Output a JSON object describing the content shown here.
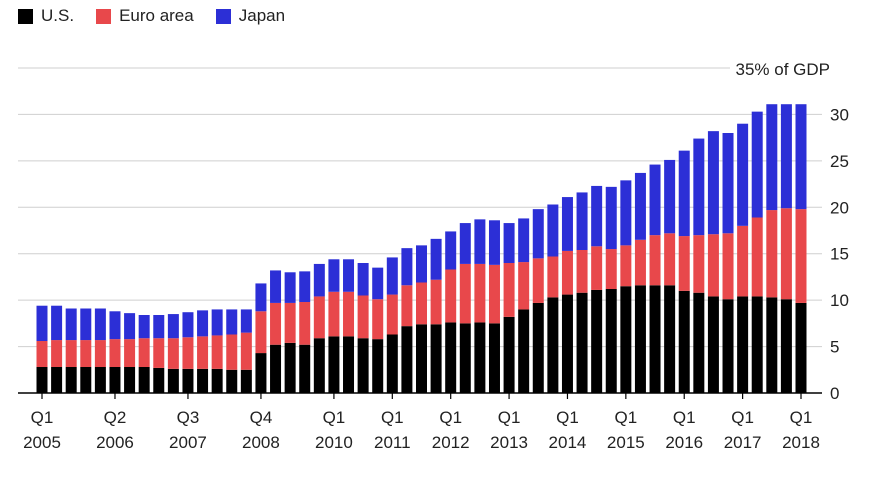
{
  "chart_data": {
    "type": "bar",
    "stacked": true,
    "ylabel": "35% of GDP",
    "ylim": [
      0,
      35
    ],
    "yticks": [
      0,
      5,
      10,
      15,
      20,
      25,
      30
    ],
    "grid": true,
    "legend_position": "top-left",
    "x_tick_labels": [
      {
        "index": 0,
        "q": "Q1",
        "year": "2005"
      },
      {
        "index": 5,
        "q": "Q2",
        "year": "2006"
      },
      {
        "index": 10,
        "q": "Q3",
        "year": "2007"
      },
      {
        "index": 15,
        "q": "Q4",
        "year": "2008"
      },
      {
        "index": 20,
        "q": "Q1",
        "year": "2010"
      },
      {
        "index": 24,
        "q": "Q1",
        "year": "2011"
      },
      {
        "index": 28,
        "q": "Q1",
        "year": "2012"
      },
      {
        "index": 32,
        "q": "Q1",
        "year": "2013"
      },
      {
        "index": 36,
        "q": "Q1",
        "year": "2014"
      },
      {
        "index": 40,
        "q": "Q1",
        "year": "2015"
      },
      {
        "index": 44,
        "q": "Q1",
        "year": "2016"
      },
      {
        "index": 48,
        "q": "Q1",
        "year": "2017"
      },
      {
        "index": 52,
        "q": "Q1",
        "year": "2018"
      }
    ],
    "series": [
      {
        "name": "U.S.",
        "color": "#000000",
        "values": [
          2.8,
          2.8,
          2.8,
          2.8,
          2.8,
          2.8,
          2.8,
          2.8,
          2.7,
          2.6,
          2.6,
          2.6,
          2.6,
          2.5,
          2.5,
          4.3,
          5.2,
          5.4,
          5.2,
          5.9,
          6.1,
          6.1,
          5.9,
          5.8,
          6.3,
          7.2,
          7.4,
          7.4,
          7.6,
          7.5,
          7.6,
          7.5,
          8.2,
          9.0,
          9.7,
          10.3,
          10.6,
          10.8,
          11.1,
          11.2,
          11.5,
          11.6,
          11.6,
          11.6,
          11.0,
          10.8,
          10.4,
          10.1,
          10.4,
          10.4,
          10.3,
          10.1,
          9.7
        ]
      },
      {
        "name": "Euro area",
        "color": "#e8484b",
        "values": [
          2.8,
          2.9,
          2.9,
          2.9,
          2.9,
          3.0,
          3.0,
          3.1,
          3.2,
          3.3,
          3.4,
          3.5,
          3.6,
          3.8,
          4.0,
          4.5,
          4.5,
          4.3,
          4.6,
          4.5,
          4.8,
          4.8,
          4.6,
          4.3,
          4.3,
          4.4,
          4.5,
          4.8,
          5.7,
          6.4,
          6.3,
          6.3,
          5.8,
          5.1,
          4.8,
          4.4,
          4.7,
          4.6,
          4.7,
          4.3,
          4.4,
          4.9,
          5.4,
          5.6,
          5.9,
          6.2,
          6.7,
          7.1,
          7.6,
          8.5,
          9.4,
          9.8,
          10.1
        ]
      },
      {
        "name": "Japan",
        "color": "#2c2fd6",
        "values": [
          3.8,
          3.7,
          3.4,
          3.4,
          3.4,
          3.0,
          2.8,
          2.5,
          2.5,
          2.6,
          2.7,
          2.8,
          2.8,
          2.7,
          2.5,
          3.0,
          3.5,
          3.3,
          3.3,
          3.5,
          3.5,
          3.5,
          3.5,
          3.4,
          4.0,
          4.0,
          4.0,
          4.4,
          4.1,
          4.4,
          4.8,
          4.8,
          4.3,
          4.7,
          5.3,
          5.6,
          5.8,
          6.2,
          6.5,
          6.7,
          7.0,
          7.2,
          7.6,
          7.9,
          9.2,
          10.4,
          11.1,
          10.8,
          11.0,
          11.4,
          11.4,
          11.2,
          11.3
        ]
      }
    ]
  }
}
